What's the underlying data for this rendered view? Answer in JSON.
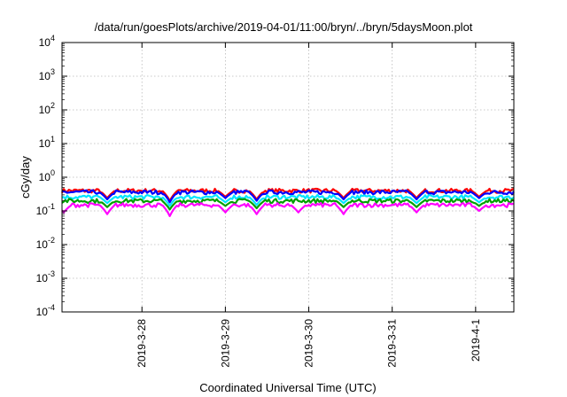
{
  "chart_data": {
    "type": "line",
    "title": "/data/run/goesPlots/archive/2019-04-01/11:00/bryn/../bryn/5daysMoon.plot",
    "xlabel": "Coordinated Universal Time (UTC)",
    "ylabel": "cGy/day",
    "y_scale": "log",
    "ylim": [
      0.0001,
      10000
    ],
    "y_ticks": [
      {
        "value": 0.0001,
        "base": "10",
        "exp": "-4"
      },
      {
        "value": 0.001,
        "base": "10",
        "exp": "-3"
      },
      {
        "value": 0.01,
        "base": "10",
        "exp": "-2"
      },
      {
        "value": 0.1,
        "base": "10",
        "exp": "-1"
      },
      {
        "value": 1,
        "base": "10",
        "exp": "0"
      },
      {
        "value": 10,
        "base": "10",
        "exp": "1"
      },
      {
        "value": 100,
        "base": "10",
        "exp": "2"
      },
      {
        "value": 1000,
        "base": "10",
        "exp": "3"
      },
      {
        "value": 10000,
        "base": "10",
        "exp": "4"
      }
    ],
    "x_range": [
      "2019-03-27 01:00",
      "2019-04-01 11:00"
    ],
    "x_ticks": [
      "2019-3-28",
      "2019-3-29",
      "2019-3-30",
      "2019-3-31",
      "2019-4-1"
    ],
    "grid": true,
    "series": [
      {
        "color": "#ff0000",
        "base": 0.4,
        "dips": [
          [
            "2019-03-27 14:00",
            0.24
          ],
          [
            "2019-03-28 08:00",
            0.2
          ],
          [
            "2019-03-29 00:00",
            0.26
          ],
          [
            "2019-03-29 09:00",
            0.22
          ],
          [
            "2019-03-30 10:00",
            0.24
          ],
          [
            "2019-03-31 07:00",
            0.24
          ],
          [
            "2019-04-01 01:00",
            0.26
          ]
        ]
      },
      {
        "color": "#0000ff",
        "base": 0.36,
        "dips": [
          [
            "2019-03-27 14:00",
            0.22
          ],
          [
            "2019-03-28 08:00",
            0.18
          ],
          [
            "2019-03-29 00:00",
            0.24
          ],
          [
            "2019-03-29 09:00",
            0.2
          ],
          [
            "2019-03-30 10:00",
            0.22
          ],
          [
            "2019-03-31 07:00",
            0.22
          ],
          [
            "2019-04-01 01:00",
            0.24
          ]
        ]
      },
      {
        "color": "#00e5ff",
        "base": 0.26,
        "dips": [
          [
            "2019-03-27 14:00",
            0.17
          ],
          [
            "2019-03-28 08:00",
            0.14
          ],
          [
            "2019-03-29 00:00",
            0.18
          ],
          [
            "2019-03-29 09:00",
            0.15
          ],
          [
            "2019-03-30 10:00",
            0.17
          ],
          [
            "2019-03-31 07:00",
            0.17
          ],
          [
            "2019-04-01 01:00",
            0.18
          ]
        ]
      },
      {
        "color": "#00a000",
        "base": 0.2,
        "dips": [
          [
            "2019-03-27 14:00",
            0.13
          ],
          [
            "2019-03-28 08:00",
            0.11
          ],
          [
            "2019-03-29 00:00",
            0.14
          ],
          [
            "2019-03-29 09:00",
            0.12
          ],
          [
            "2019-03-30 10:00",
            0.13
          ],
          [
            "2019-03-31 07:00",
            0.13
          ],
          [
            "2019-04-01 01:00",
            0.14
          ]
        ]
      },
      {
        "color": "#ff00ff",
        "base": 0.15,
        "dips": [
          [
            "2019-03-27 01:30",
            0.09
          ],
          [
            "2019-03-27 14:00",
            0.08
          ],
          [
            "2019-03-28 08:00",
            0.07
          ],
          [
            "2019-03-29 00:00",
            0.09
          ],
          [
            "2019-03-29 09:00",
            0.08
          ],
          [
            "2019-03-29 21:00",
            0.09
          ],
          [
            "2019-03-30 10:00",
            0.08
          ],
          [
            "2019-03-31 07:00",
            0.09
          ],
          [
            "2019-04-01 01:00",
            0.1
          ]
        ]
      }
    ]
  }
}
